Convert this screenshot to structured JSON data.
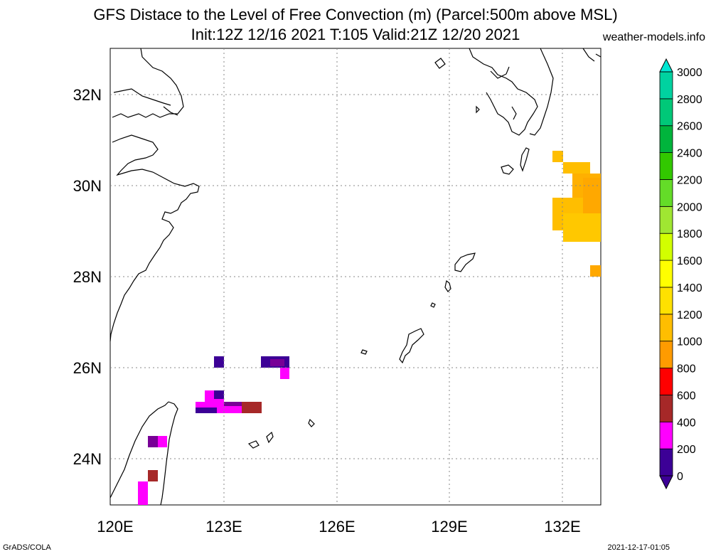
{
  "title": {
    "line1": "GFS Distace to the Level of Free Convection (m) (Parcel:500m above MSL)",
    "line2": "Init:12Z 12/16 2021 T:105 Valid:21Z 12/20 2021"
  },
  "site": "weather-models.info",
  "footer": {
    "left": "GrADS/COLA",
    "right": "2021-12-17-01:05"
  },
  "map": {
    "lon_range": [
      120,
      133.5
    ],
    "lat_range": [
      23,
      33
    ],
    "x_ticks": [
      {
        "value": 120,
        "label": "120E"
      },
      {
        "value": 123,
        "label": "123E"
      },
      {
        "value": 126,
        "label": "126E"
      },
      {
        "value": 129,
        "label": "129E"
      },
      {
        "value": 132,
        "label": "132E"
      }
    ],
    "y_ticks": [
      {
        "value": 24,
        "label": "24N"
      },
      {
        "value": 26,
        "label": "26N"
      },
      {
        "value": 28,
        "label": "28N"
      },
      {
        "value": 30,
        "label": "30N"
      },
      {
        "value": 32,
        "label": "32N"
      }
    ],
    "grid": true
  },
  "colorbar": {
    "levels": [
      {
        "label": "0",
        "color": "#3c0096"
      },
      {
        "label": "200",
        "color": "#780096"
      },
      {
        "label": "400",
        "color": "#ff00ff"
      },
      {
        "label": "600",
        "color": "#a62828"
      },
      {
        "label": "800",
        "color": "#ff0000"
      },
      {
        "label": "1000",
        "color": "#ff9b00"
      },
      {
        "label": "1200",
        "color": "#ffbe00"
      },
      {
        "label": "1400",
        "color": "#ffe100"
      },
      {
        "label": "1600",
        "color": "#ffff00"
      },
      {
        "label": "1800",
        "color": "#d2ff00"
      },
      {
        "label": "2000",
        "color": "#a0e632"
      },
      {
        "label": "2200",
        "color": "#64dc28"
      },
      {
        "label": "2400",
        "color": "#32c800"
      },
      {
        "label": "2600",
        "color": "#00b43c"
      },
      {
        "label": "2800",
        "color": "#00c878"
      },
      {
        "label": "3000",
        "color": "#00d2a0"
      }
    ],
    "top_color": "#00e6d2",
    "bottom_color": "#3c0096"
  }
}
